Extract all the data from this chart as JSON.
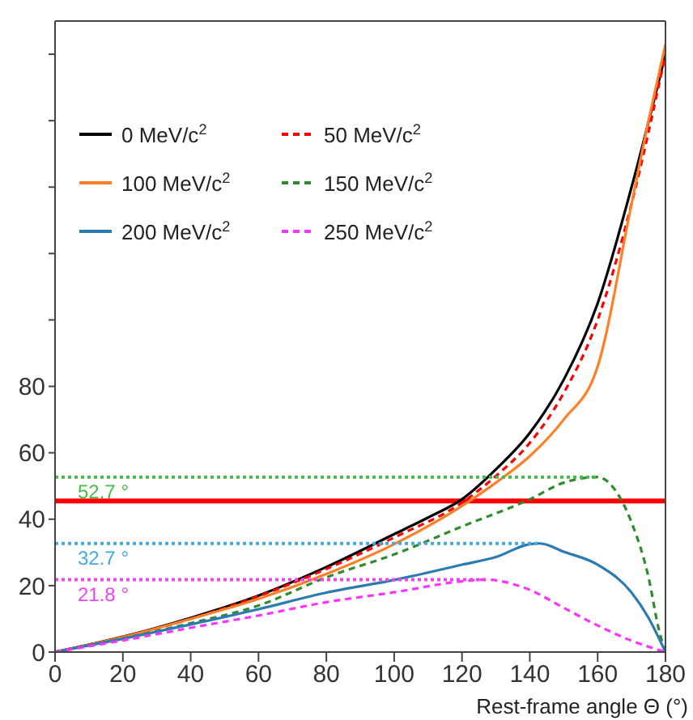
{
  "chart_data": {
    "type": "line",
    "xlabel": "Rest-frame angle Θ (°)",
    "xlim": [
      0,
      180
    ],
    "ylim": [
      0,
      190
    ],
    "xticks": [
      0,
      20,
      40,
      60,
      80,
      100,
      120,
      140,
      160,
      180
    ],
    "yticks": [
      0,
      20,
      40,
      60,
      80,
      {
        "value": 100,
        "label": null
      },
      {
        "value": 120,
        "label": null
      },
      {
        "value": 140,
        "label": null
      },
      {
        "value": 160,
        "label": null
      },
      {
        "value": 180,
        "label": null
      }
    ],
    "grid": false,
    "legend": "top left",
    "marker": "none",
    "series": [
      {
        "name": "0 MeV/c$^{2}$",
        "color": "#000000",
        "line_style": "solid",
        "x": [
          0,
          20,
          40,
          60,
          80,
          100,
          110,
          120,
          130,
          140,
          150,
          160,
          170,
          180
        ],
        "values": [
          0,
          4.6,
          10.3,
          17,
          25.6,
          35.5,
          40.5,
          46,
          55,
          66,
          82,
          105,
          140,
          180
        ]
      },
      {
        "name": "50 MeV/c$^{2}$",
        "color": "#ff0000",
        "line_style": "dashed",
        "x": [
          0,
          20,
          40,
          60,
          80,
          100,
          120,
          130,
          140,
          150,
          160,
          170,
          180
        ],
        "values": [
          0,
          4.5,
          10,
          16.8,
          25,
          34.5,
          45,
          53,
          63,
          78,
          100,
          135,
          180
        ]
      },
      {
        "name": "100 MeV/c$^{2}$",
        "color": "#ff7f27",
        "line_style": "solid",
        "x": [
          0,
          20,
          40,
          60,
          80,
          100,
          120,
          130,
          140,
          150,
          160,
          170,
          175,
          180
        ],
        "values": [
          0,
          4.5,
          10,
          16,
          23.5,
          32.5,
          44,
          51,
          59,
          70,
          86,
          135,
          160,
          183
        ]
      },
      {
        "name": "150 MeV/c$^{2}$",
        "color": "#2e8b2e",
        "line_style": "dashed",
        "x": [
          0,
          20,
          40,
          60,
          80,
          100,
          120,
          140,
          150,
          160,
          165,
          170,
          175,
          178,
          180
        ],
        "values": [
          0,
          4.1,
          8.7,
          14,
          22.5,
          29.4,
          37.8,
          46,
          51,
          52.7,
          49,
          39,
          22.5,
          7,
          0
        ]
      },
      {
        "name": "200 MeV/c$^{2}$",
        "color": "#2a7bb0",
        "line_style": "solid",
        "x": [
          0,
          20,
          40,
          60,
          80,
          100,
          120,
          130,
          140,
          143,
          150,
          160,
          170,
          175,
          180
        ],
        "values": [
          0,
          4,
          8.3,
          12.9,
          17.9,
          21.7,
          26.3,
          28.6,
          32.5,
          32.7,
          30.2,
          26.3,
          17.9,
          10.3,
          0
        ]
      },
      {
        "name": "250 MeV/c$^{2}$",
        "color": "#ff33ff",
        "line_style": "dashed",
        "x": [
          0,
          20,
          40,
          60,
          80,
          100,
          120,
          127,
          140,
          150,
          160,
          170,
          180
        ],
        "values": [
          0,
          3.5,
          7.3,
          11,
          15,
          18,
          21.3,
          21.8,
          18.7,
          13.3,
          8,
          3.4,
          0
        ]
      },
      {
        "color": "#44bb44",
        "line_style": "dotted",
        "x": [
          0,
          160
        ],
        "values": [
          52.7,
          52.7
        ]
      },
      {
        "color": "#44aadd",
        "line_style": "dotted",
        "x": [
          0,
          143
        ],
        "values": [
          32.7,
          32.7
        ]
      },
      {
        "color": "#ee44ee",
        "line_style": "dotted",
        "x": [
          0,
          127
        ],
        "values": [
          21.8,
          21.8
        ]
      }
    ],
    "ref_lines": [
      {
        "axis": "y",
        "value": 45.5,
        "color": "#ff0000",
        "line_style": "solid"
      }
    ],
    "annotations": [
      {
        "text": "52.7 °",
        "y": 52.7
      },
      {
        "text": "32.7 °",
        "y": 32.7
      },
      {
        "text": "21.8 °",
        "y": 21.8
      }
    ]
  }
}
